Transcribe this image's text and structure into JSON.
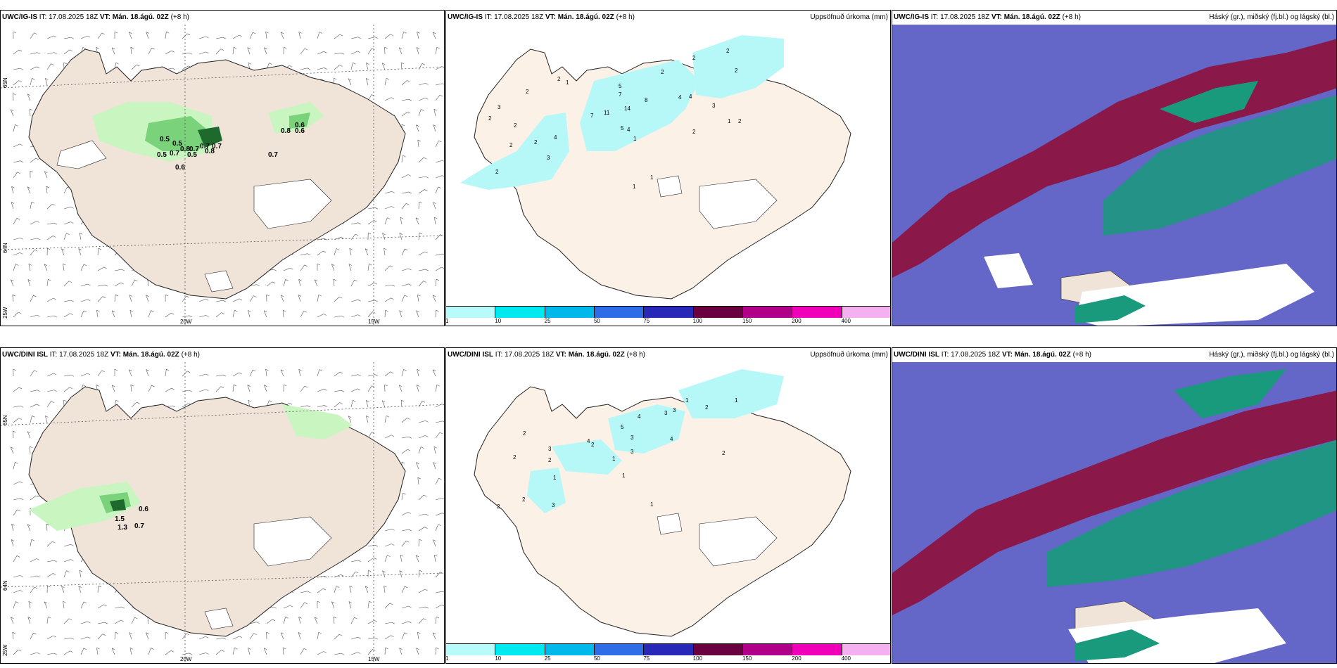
{
  "rows": [
    {
      "model": "UWC/IG-IS",
      "it_label": "IT:",
      "it": "17.08.2025 18Z",
      "vt_label": "VT:",
      "vt": "Mán. 18.ágú. 02Z",
      "lead": "(+8 h)"
    },
    {
      "model": "UWC/DINI ISL",
      "it_label": "IT:",
      "it": "17.08.2025 18Z",
      "vt_label": "VT:",
      "vt": "Mán. 18.ágú. 02Z",
      "lead": "(+8 h)"
    }
  ],
  "panel_titles": {
    "precip": "Uppsöfnuð úrkoma (mm)",
    "clouds": "Háský (gr.), miðský (fj.bl.) og lágský (bl.)"
  },
  "axis_labels": {
    "lat_top": "65N",
    "lat_bottom": "64N",
    "lat_corner": "25W",
    "lon_left": "20W",
    "lon_right": "15W"
  },
  "colorbar": {
    "ticks": [
      "1",
      "10",
      "25",
      "50",
      "75",
      "100",
      "150",
      "200",
      "400"
    ],
    "colors": [
      "#b8fbfb",
      "#00e8f0",
      "#00b8ea",
      "#2f6de8",
      "#2828b8",
      "#6a0040",
      "#b0008a",
      "#f000b8",
      "#f5b0f0"
    ]
  },
  "colors": {
    "land": "#f0e4d8",
    "precip_land": "#fbf1e6",
    "green_light": "#c8f5c0",
    "green_mid": "#7ad27a",
    "green_dark": "#1e6a2e",
    "precip_cyan": "#b6f7f8",
    "cloud_high": "#6466c8",
    "cloud_mid": "#8a1848",
    "cloud_low": "#1a9a7c"
  },
  "wind_values_top": [
    "0.5",
    "0.5",
    "0.5",
    "0.7",
    "0.8",
    "0.7",
    "0.7",
    "0.5",
    "0.7",
    "0.8",
    "0.6",
    "0.6",
    "0.8",
    "0.6",
    "0.7"
  ],
  "wind_values_bottom": [
    "0.6",
    "1.5",
    "1.3",
    "0.7"
  ],
  "precip_values_top": [
    "2",
    "2",
    "3",
    "2",
    "2",
    "2",
    "2",
    "4",
    "2",
    "3",
    "1",
    "7",
    "11",
    "5",
    "7",
    "14",
    "5",
    "4",
    "8",
    "4",
    "4",
    "2",
    "2",
    "2",
    "2",
    "1",
    "2",
    "2",
    "3",
    "1",
    "1",
    "1"
  ],
  "precip_values_bottom": [
    "2",
    "3",
    "2",
    "2",
    "1",
    "2",
    "2",
    "3",
    "4",
    "2",
    "1",
    "1",
    "5",
    "3",
    "3",
    "4",
    "3",
    "3",
    "4",
    "1",
    "2",
    "1",
    "2",
    "1"
  ]
}
